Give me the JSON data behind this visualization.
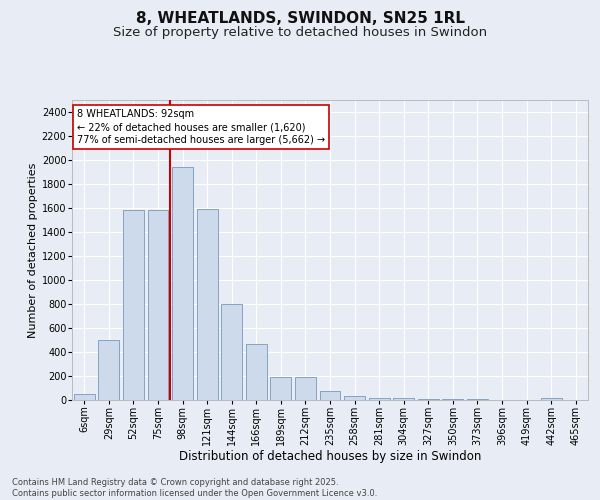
{
  "title1": "8, WHEATLANDS, SWINDON, SN25 1RL",
  "title2": "Size of property relative to detached houses in Swindon",
  "xlabel": "Distribution of detached houses by size in Swindon",
  "ylabel": "Number of detached properties",
  "categories": [
    "6sqm",
    "29sqm",
    "52sqm",
    "75sqm",
    "98sqm",
    "121sqm",
    "144sqm",
    "166sqm",
    "189sqm",
    "212sqm",
    "235sqm",
    "258sqm",
    "281sqm",
    "304sqm",
    "327sqm",
    "350sqm",
    "373sqm",
    "396sqm",
    "419sqm",
    "442sqm",
    "465sqm"
  ],
  "values": [
    50,
    500,
    1580,
    1580,
    1940,
    1590,
    800,
    470,
    195,
    195,
    75,
    30,
    20,
    15,
    10,
    8,
    5,
    3,
    2,
    18,
    2
  ],
  "bar_color": "#ccdaec",
  "bar_edge_color": "#7799bb",
  "vline_color": "#cc0000",
  "vline_pos": 3.5,
  "annotation_text": "8 WHEATLANDS: 92sqm\n← 22% of detached houses are smaller (1,620)\n77% of semi-detached houses are larger (5,662) →",
  "annotation_box_facecolor": "#ffffff",
  "annotation_box_edgecolor": "#cc0000",
  "ylim": [
    0,
    2500
  ],
  "yticks": [
    0,
    200,
    400,
    600,
    800,
    1000,
    1200,
    1400,
    1600,
    1800,
    2000,
    2200,
    2400
  ],
  "bg_color": "#e8edf5",
  "footer": "Contains HM Land Registry data © Crown copyright and database right 2025.\nContains public sector information licensed under the Open Government Licence v3.0.",
  "title1_fontsize": 11,
  "title2_fontsize": 9.5,
  "xlabel_fontsize": 8.5,
  "ylabel_fontsize": 8,
  "tick_fontsize": 7,
  "footer_fontsize": 6,
  "annot_fontsize": 7
}
